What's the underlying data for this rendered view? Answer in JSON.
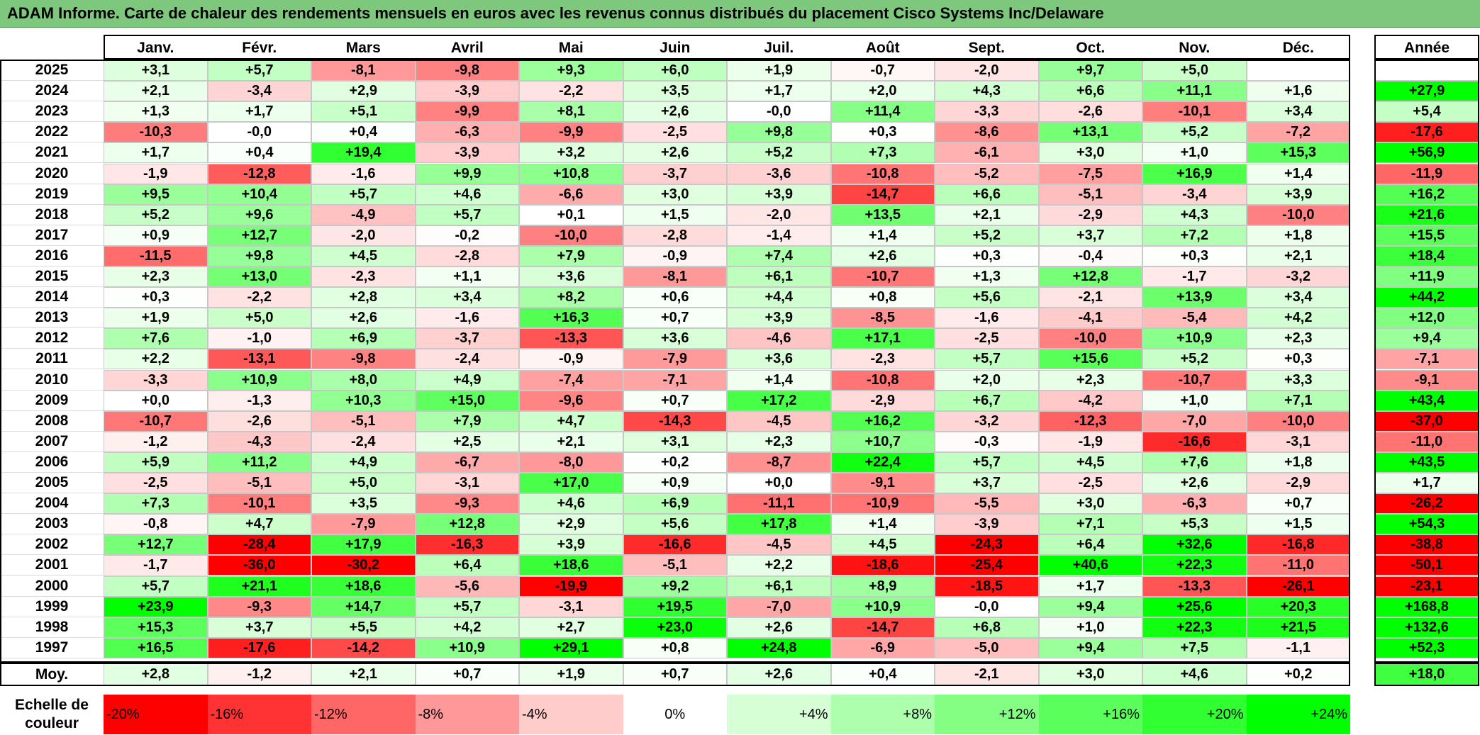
{
  "title": "ADAM Informe. Carte de chaleur des rendements mensuels en euros avec les revenus connus distribués du placement Cisco Systems Inc/Delaware",
  "months": [
    "Janv.",
    "Févr.",
    "Mars",
    "Avril",
    "Mai",
    "Juin",
    "Juil.",
    "Août",
    "Sept.",
    "Oct.",
    "Nov.",
    "Déc."
  ],
  "annual_header": "Année",
  "average_label": "Moy.",
  "scale_label_line1": "Echelle de",
  "scale_label_line2": "couleur",
  "scale": [
    {
      "label": "-20%",
      "value": -20,
      "color": "#ff0000"
    },
    {
      "label": "-16%",
      "value": -16,
      "color": "#ff3333"
    },
    {
      "label": "-12%",
      "value": -12,
      "color": "#ff6666"
    },
    {
      "label": "-8%",
      "value": -8,
      "color": "#ff9999"
    },
    {
      "label": "-4%",
      "value": -4,
      "color": "#ffcccc"
    },
    {
      "label": "0%",
      "value": 0,
      "color": "#ffffff"
    },
    {
      "label": "+4%",
      "value": 4,
      "color": "#d6ffd6"
    },
    {
      "label": "+8%",
      "value": 8,
      "color": "#adffad"
    },
    {
      "label": "+12%",
      "value": 12,
      "color": "#84ff84"
    },
    {
      "label": "+16%",
      "value": 16,
      "color": "#5bff5b"
    },
    {
      "label": "+20%",
      "value": 20,
      "color": "#32ff32"
    },
    {
      "label": "+24%",
      "value": 24,
      "color": "#00ff00"
    }
  ],
  "chart_data": {
    "type": "heatmap",
    "title": "ADAM Informe. Carte de chaleur des rendements mensuels en euros avec les revenus connus distribués du placement Cisco Systems Inc/Delaware",
    "columns": [
      "Janv.",
      "Févr.",
      "Mars",
      "Avril",
      "Mai",
      "Juin",
      "Juil.",
      "Août",
      "Sept.",
      "Oct.",
      "Nov.",
      "Déc."
    ],
    "rows": [
      {
        "year": "2025",
        "values": [
          "+3,1",
          "+5,7",
          "-8,1",
          "-9,8",
          "+9,3",
          "+6,0",
          "+1,9",
          "-0,7",
          "-2,0",
          "+9,7",
          "+5,0",
          ""
        ],
        "annual": ""
      },
      {
        "year": "2024",
        "values": [
          "+2,1",
          "-3,4",
          "+2,9",
          "-3,9",
          "-2,2",
          "+3,5",
          "+1,7",
          "+2,0",
          "+4,3",
          "+6,6",
          "+11,1",
          "+1,6"
        ],
        "annual": "+27,9"
      },
      {
        "year": "2023",
        "values": [
          "+1,3",
          "+1,7",
          "+5,1",
          "-9,9",
          "+8,1",
          "+2,6",
          "-0,0",
          "+11,4",
          "-3,3",
          "-2,6",
          "-10,1",
          "+3,4"
        ],
        "annual": "+5,4"
      },
      {
        "year": "2022",
        "values": [
          "-10,3",
          "-0,0",
          "+0,4",
          "-6,3",
          "-9,9",
          "-2,5",
          "+9,8",
          "+0,3",
          "-8,6",
          "+13,1",
          "+5,2",
          "-7,2"
        ],
        "annual": "-17,6"
      },
      {
        "year": "2021",
        "values": [
          "+1,7",
          "+0,4",
          "+19,4",
          "-3,9",
          "+3,2",
          "+2,6",
          "+5,2",
          "+7,3",
          "-6,1",
          "+3,0",
          "+1,0",
          "+15,3"
        ],
        "annual": "+56,9"
      },
      {
        "year": "2020",
        "values": [
          "-1,9",
          "-12,8",
          "-1,6",
          "+9,9",
          "+10,8",
          "-3,7",
          "-3,6",
          "-10,8",
          "-5,2",
          "-7,5",
          "+16,9",
          "+1,4"
        ],
        "annual": "-11,9"
      },
      {
        "year": "2019",
        "values": [
          "+9,5",
          "+10,4",
          "+5,7",
          "+4,6",
          "-6,6",
          "+3,0",
          "+3,9",
          "-14,7",
          "+6,6",
          "-5,1",
          "-3,4",
          "+3,9"
        ],
        "annual": "+16,2"
      },
      {
        "year": "2018",
        "values": [
          "+5,2",
          "+9,6",
          "-4,9",
          "+5,7",
          "+0,1",
          "+1,5",
          "-2,0",
          "+13,5",
          "+2,1",
          "-2,9",
          "+4,3",
          "-10,0"
        ],
        "annual": "+21,6"
      },
      {
        "year": "2017",
        "values": [
          "+0,9",
          "+12,7",
          "-2,0",
          "-0,2",
          "-10,0",
          "-2,8",
          "-1,4",
          "+1,4",
          "+5,2",
          "+3,7",
          "+7,2",
          "+1,8"
        ],
        "annual": "+15,5"
      },
      {
        "year": "2016",
        "values": [
          "-11,5",
          "+9,8",
          "+4,5",
          "-2,8",
          "+7,9",
          "-0,9",
          "+7,4",
          "+2,6",
          "+0,3",
          "-0,4",
          "+0,3",
          "+2,1"
        ],
        "annual": "+18,4"
      },
      {
        "year": "2015",
        "values": [
          "+2,3",
          "+13,0",
          "-2,3",
          "+1,1",
          "+3,6",
          "-8,1",
          "+6,1",
          "-10,7",
          "+1,3",
          "+12,8",
          "-1,7",
          "-3,2"
        ],
        "annual": "+11,9"
      },
      {
        "year": "2014",
        "values": [
          "+0,3",
          "-2,2",
          "+2,8",
          "+3,4",
          "+8,2",
          "+0,6",
          "+4,4",
          "+0,8",
          "+5,6",
          "-2,1",
          "+13,9",
          "+3,4"
        ],
        "annual": "+44,2"
      },
      {
        "year": "2013",
        "values": [
          "+1,9",
          "+5,0",
          "+2,6",
          "-1,6",
          "+16,3",
          "+0,7",
          "+3,9",
          "-8,5",
          "-1,6",
          "-4,1",
          "-5,4",
          "+4,2"
        ],
        "annual": "+12,0"
      },
      {
        "year": "2012",
        "values": [
          "+7,6",
          "-1,0",
          "+6,9",
          "-3,7",
          "-13,3",
          "+3,6",
          "-4,6",
          "+17,1",
          "-2,5",
          "-10,0",
          "+10,9",
          "+2,3"
        ],
        "annual": "+9,4"
      },
      {
        "year": "2011",
        "values": [
          "+2,2",
          "-13,1",
          "-9,8",
          "-2,4",
          "-0,9",
          "-7,9",
          "+3,6",
          "-2,3",
          "+5,7",
          "+15,6",
          "+5,2",
          "+0,3"
        ],
        "annual": "-7,1"
      },
      {
        "year": "2010",
        "values": [
          "-3,3",
          "+10,9",
          "+8,0",
          "+4,9",
          "-7,4",
          "-7,1",
          "+1,4",
          "-10,8",
          "+2,0",
          "+2,3",
          "-10,7",
          "+3,3"
        ],
        "annual": "-9,1"
      },
      {
        "year": "2009",
        "values": [
          "+0,0",
          "-1,3",
          "+10,3",
          "+15,0",
          "-9,6",
          "+0,7",
          "+17,2",
          "-2,9",
          "+6,7",
          "-4,2",
          "+1,0",
          "+7,1"
        ],
        "annual": "+43,4"
      },
      {
        "year": "2008",
        "values": [
          "-10,7",
          "-2,6",
          "-5,1",
          "+7,9",
          "+4,7",
          "-14,3",
          "-4,5",
          "+16,2",
          "-3,2",
          "-12,3",
          "-7,0",
          "-10,0"
        ],
        "annual": "-37,0"
      },
      {
        "year": "2007",
        "values": [
          "-1,2",
          "-4,3",
          "-2,4",
          "+2,5",
          "+2,1",
          "+3,1",
          "+2,3",
          "+10,7",
          "-0,3",
          "-1,9",
          "-16,6",
          "-3,1"
        ],
        "annual": "-11,0"
      },
      {
        "year": "2006",
        "values": [
          "+5,9",
          "+11,2",
          "+4,9",
          "-6,7",
          "-8,0",
          "+0,2",
          "-8,7",
          "+22,4",
          "+5,7",
          "+4,5",
          "+7,6",
          "+1,8"
        ],
        "annual": "+43,5"
      },
      {
        "year": "2005",
        "values": [
          "-2,5",
          "-5,1",
          "+5,0",
          "-3,1",
          "+17,0",
          "+0,9",
          "+0,0",
          "-9,1",
          "+3,7",
          "-2,5",
          "+2,6",
          "-2,9"
        ],
        "annual": "+1,7"
      },
      {
        "year": "2004",
        "values": [
          "+7,3",
          "-10,1",
          "+3,5",
          "-9,3",
          "+4,6",
          "+6,9",
          "-11,1",
          "-10,9",
          "-5,5",
          "+3,0",
          "-6,3",
          "+0,7"
        ],
        "annual": "-26,2"
      },
      {
        "year": "2003",
        "values": [
          "-0,8",
          "+4,7",
          "-7,9",
          "+12,8",
          "+2,9",
          "+5,6",
          "+17,8",
          "+1,4",
          "-3,9",
          "+7,1",
          "+5,3",
          "+1,5"
        ],
        "annual": "+54,3"
      },
      {
        "year": "2002",
        "values": [
          "+12,7",
          "-28,4",
          "+17,9",
          "-16,3",
          "+3,9",
          "-16,6",
          "-4,5",
          "+4,5",
          "-24,3",
          "+6,4",
          "+32,6",
          "-16,8"
        ],
        "annual": "-38,8"
      },
      {
        "year": "2001",
        "values": [
          "-1,7",
          "-36,0",
          "-30,2",
          "+6,4",
          "+18,6",
          "-5,1",
          "+2,2",
          "-18,6",
          "-25,4",
          "+40,6",
          "+22,3",
          "-11,0"
        ],
        "annual": "-50,1"
      },
      {
        "year": "2000",
        "values": [
          "+5,7",
          "+21,1",
          "+18,6",
          "-5,6",
          "-19,9",
          "+9,2",
          "+6,1",
          "+8,9",
          "-18,5",
          "+1,7",
          "-13,3",
          "-26,1"
        ],
        "annual": "-23,1"
      },
      {
        "year": "1999",
        "values": [
          "+23,9",
          "-9,3",
          "+14,7",
          "+5,7",
          "-3,1",
          "+19,5",
          "-7,0",
          "+10,9",
          "-0,0",
          "+9,4",
          "+25,6",
          "+20,3"
        ],
        "annual": "+168,8"
      },
      {
        "year": "1998",
        "values": [
          "+15,3",
          "+3,7",
          "+5,5",
          "+4,2",
          "+2,7",
          "+23,0",
          "+2,6",
          "-14,7",
          "+6,8",
          "+1,0",
          "+22,3",
          "+21,5"
        ],
        "annual": "+132,6"
      },
      {
        "year": "1997",
        "values": [
          "+16,5",
          "-17,6",
          "-14,2",
          "+10,9",
          "+29,1",
          "+0,8",
          "+24,8",
          "-6,9",
          "-5,0",
          "+9,4",
          "+7,5",
          "-1,1"
        ],
        "annual": "+52,3"
      }
    ],
    "average": {
      "values": [
        "+2,8",
        "-1,2",
        "+2,1",
        "+0,7",
        "+1,9",
        "+0,7",
        "+2,6",
        "+0,4",
        "-2,1",
        "+3,0",
        "+4,6",
        "+0,2"
      ],
      "annual": "+18,0"
    },
    "color_scale": {
      "min": -20,
      "max": 24,
      "negative_color": "#ff0000",
      "positive_color": "#00ff00"
    }
  }
}
